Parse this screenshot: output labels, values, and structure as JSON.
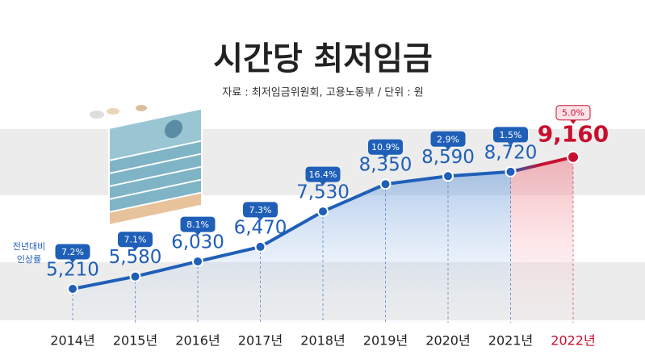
{
  "chart_data": {
    "type": "line",
    "title": "시간당 최저임금",
    "subtitle": "자료 : 최저임금위원회, 고용노동부 / 단위 : 원",
    "annotation": [
      "전년대비",
      "인상률"
    ],
    "categories": [
      "2014년",
      "2015년",
      "2016년",
      "2017년",
      "2018년",
      "2019년",
      "2020년",
      "2021년",
      "2022년"
    ],
    "values": [
      5210,
      5580,
      6030,
      6470,
      7530,
      8350,
      8590,
      8720,
      9160
    ],
    "value_labels": [
      "5,210",
      "5,580",
      "6,030",
      "6,470",
      "7,530",
      "8,350",
      "8,590",
      "8,720",
      "9,160"
    ],
    "growth": {
      "values": [
        7.2,
        7.1,
        8.1,
        7.3,
        16.4,
        10.9,
        2.9,
        1.5,
        5.0
      ],
      "value_labels": [
        "7.2%",
        "7.1%",
        "8.1%",
        "7.3%",
        "16.4%",
        "10.9%",
        "2.9%",
        "1.5%",
        "5.0%"
      ]
    },
    "color": "#1f5fb8",
    "highlight_color": "#c8102e",
    "ylim": [
      4000,
      10000
    ]
  }
}
